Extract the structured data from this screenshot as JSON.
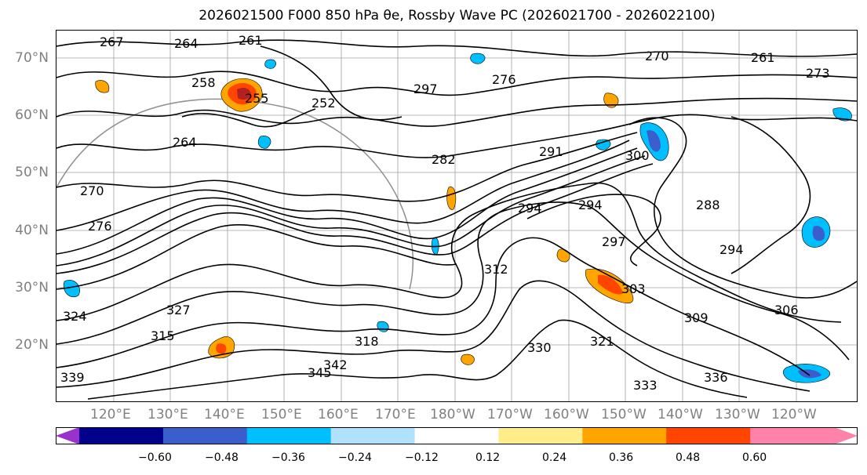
{
  "title": "2026021500 F000 850 hPa θe, Rossby Wave PC (2026021700 - 2026022100)",
  "map": {
    "lat_labels": [
      "70°N",
      "60°N",
      "50°N",
      "40°N",
      "30°N",
      "20°N"
    ],
    "lon_labels": [
      "120°E",
      "130°E",
      "140°E",
      "150°E",
      "160°E",
      "170°E",
      "180°W",
      "170°W",
      "160°W",
      "150°W",
      "140°W",
      "130°W",
      "120°W"
    ],
    "contour_labels": [
      "267",
      "264",
      "261",
      "258",
      "255",
      "252",
      "264",
      "270",
      "276",
      "282",
      "291",
      "294",
      "294",
      "297",
      "300",
      "303",
      "309",
      "288",
      "294",
      "330",
      "333",
      "336",
      "339",
      "342",
      "345",
      "324",
      "327",
      "312",
      "315",
      "321",
      "318",
      "261",
      "270",
      "273",
      "276",
      "297",
      "306"
    ]
  },
  "colorbar": {
    "tick_labels": [
      "−0.60",
      "−0.48",
      "−0.36",
      "−0.24",
      "−0.12",
      "0.12",
      "0.24",
      "0.36",
      "0.48",
      "0.60"
    ],
    "colors": [
      "#9932cc",
      "#00008b",
      "#3a5fcd",
      "#00bfff",
      "#b0e2ff",
      "#ffffff",
      "#ffec8b",
      "#ffa500",
      "#ff4500",
      "#b22222",
      "#ff82ab"
    ]
  }
}
